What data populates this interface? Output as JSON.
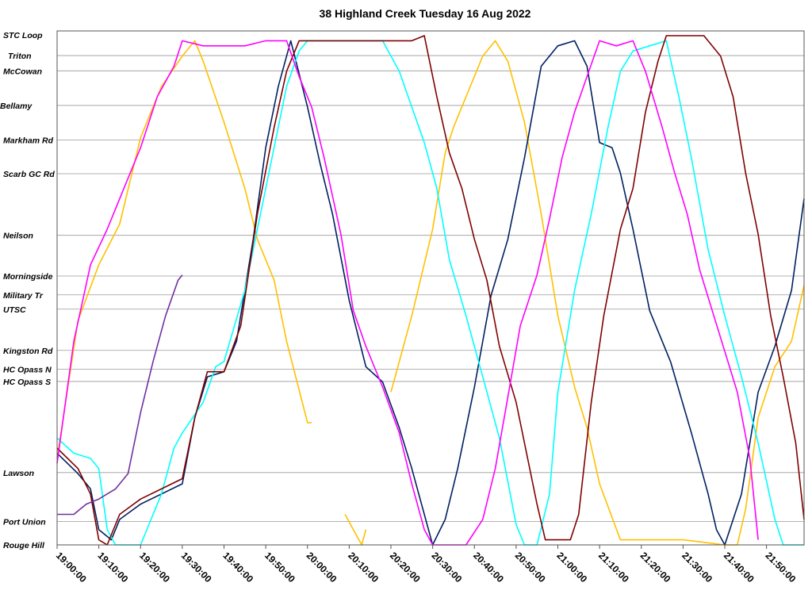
{
  "chart_data": {
    "type": "line",
    "title": "38 Highland Creek Tuesday 16 Aug 2022",
    "xlabel": "",
    "ylabel": "",
    "x_range": [
      "19:00:00",
      "21:59:00"
    ],
    "x_ticks": [
      "19:00:00",
      "19:10:00",
      "19:20:00",
      "19:30:00",
      "19:40:00",
      "19:50:00",
      "20:00:00",
      "20:10:00",
      "20:20:00",
      "20:30:00",
      "20:40:00",
      "20:50:00",
      "21:00:00",
      "21:10:00",
      "21:20:00",
      "21:30:00",
      "21:40:00",
      "21:50:00"
    ],
    "y_axis_note": "stops, listed top (STC Loop) to bottom (Rouge Hill); values are relative position along route",
    "stops": [
      {
        "name": "STC Loop",
        "pos": 100
      },
      {
        "name": "Triton",
        "pos": 96.1
      },
      {
        "name": "McCowan",
        "pos": 93.1
      },
      {
        "name": "Bellamy",
        "pos": 86.3
      },
      {
        "name": "Markham Rd",
        "pos": 79.5
      },
      {
        "name": "Scarb GC Rd",
        "pos": 72.9
      },
      {
        "name": "Neilson",
        "pos": 60.8
      },
      {
        "name": "Morningside",
        "pos": 52.8
      },
      {
        "name": "Military Tr",
        "pos": 49.1
      },
      {
        "name": "UTSC",
        "pos": 46.3
      },
      {
        "name": "Kingston Rd",
        "pos": 38.2
      },
      {
        "name": "HC Opass N",
        "pos": 34.5
      },
      {
        "name": "HC Opass S",
        "pos": 32.1
      },
      {
        "name": "Lawson",
        "pos": 14.2
      },
      {
        "name": "Port Union",
        "pos": 4.6
      },
      {
        "name": "Rouge Hill",
        "pos": 0
      }
    ],
    "grid": true,
    "legend": "none",
    "series": [
      {
        "color": "#FFC000",
        "points": [
          [
            "19:00",
            17
          ],
          [
            "19:05",
            44
          ],
          [
            "19:10",
            55
          ],
          [
            "19:15",
            63
          ],
          [
            "19:20",
            80
          ],
          [
            "19:25",
            90
          ],
          [
            "19:30",
            96
          ],
          [
            "19:33",
            99
          ],
          [
            "19:35",
            95
          ],
          [
            "19:40",
            83
          ],
          [
            "19:45",
            70
          ],
          [
            "19:48",
            60
          ],
          [
            "19:52",
            52
          ],
          [
            "19:55",
            40
          ],
          [
            "20:00",
            24
          ],
          [
            "20:01",
            24
          ]
        ]
      },
      {
        "color": "#FFC000",
        "points": [
          [
            "20:09",
            6
          ],
          [
            "20:11",
            3
          ],
          [
            "20:13",
            0
          ],
          [
            "20:14",
            3
          ]
        ]
      },
      {
        "color": "#FFC000",
        "points": [
          [
            "20:20",
            30
          ],
          [
            "20:25",
            45
          ],
          [
            "20:30",
            62
          ],
          [
            "20:33",
            77
          ],
          [
            "20:35",
            82
          ],
          [
            "20:38",
            88
          ],
          [
            "20:42",
            96
          ],
          [
            "20:45",
            99
          ],
          [
            "20:48",
            95
          ],
          [
            "20:52",
            83
          ],
          [
            "20:56",
            65
          ],
          [
            "21:00",
            45
          ],
          [
            "21:04",
            31
          ],
          [
            "21:07",
            23
          ],
          [
            "21:10",
            12
          ],
          [
            "21:15",
            1
          ],
          [
            "21:30",
            1
          ],
          [
            "21:40",
            0
          ],
          [
            "21:43",
            0
          ],
          [
            "21:45",
            7
          ],
          [
            "21:48",
            25
          ],
          [
            "21:52",
            35
          ],
          [
            "21:56",
            40
          ],
          [
            "21:59",
            51
          ]
        ]
      },
      {
        "color": "#002060",
        "points": [
          [
            "19:00",
            18
          ],
          [
            "19:05",
            14
          ],
          [
            "19:08",
            11
          ],
          [
            "19:10",
            3
          ],
          [
            "19:13",
            1
          ],
          [
            "19:15",
            5
          ],
          [
            "19:20",
            8
          ],
          [
            "19:25",
            10
          ],
          [
            "19:30",
            12
          ],
          [
            "19:33",
            25
          ],
          [
            "19:36",
            33
          ],
          [
            "19:40",
            34
          ],
          [
            "19:43",
            40
          ],
          [
            "19:47",
            60
          ],
          [
            "19:50",
            78
          ],
          [
            "19:53",
            90
          ],
          [
            "19:56",
            99
          ],
          [
            "20:00",
            86
          ],
          [
            "20:03",
            75
          ],
          [
            "20:06",
            65
          ],
          [
            "20:10",
            48
          ],
          [
            "20:14",
            35
          ],
          [
            "20:18",
            32
          ],
          [
            "20:22",
            23
          ],
          [
            "20:25",
            15
          ],
          [
            "20:28",
            6
          ],
          [
            "20:30",
            0
          ],
          [
            "20:33",
            5
          ],
          [
            "20:36",
            15
          ],
          [
            "20:40",
            31
          ],
          [
            "20:44",
            49
          ],
          [
            "20:48",
            60
          ],
          [
            "20:52",
            76
          ],
          [
            "20:56",
            94
          ],
          [
            "21:00",
            98
          ],
          [
            "21:04",
            99
          ],
          [
            "21:07",
            94
          ],
          [
            "21:10",
            79
          ],
          [
            "21:13",
            78
          ],
          [
            "21:15",
            73
          ],
          [
            "21:18",
            62
          ],
          [
            "21:22",
            46
          ],
          [
            "21:27",
            36
          ],
          [
            "21:32",
            22
          ],
          [
            "21:36",
            10
          ],
          [
            "21:38",
            3
          ],
          [
            "21:40",
            0
          ],
          [
            "21:44",
            10
          ],
          [
            "21:48",
            30
          ],
          [
            "21:52",
            39
          ],
          [
            "21:56",
            50
          ],
          [
            "21:59",
            68
          ]
        ]
      },
      {
        "color": "#00FFFF",
        "points": [
          [
            "19:00",
            21
          ],
          [
            "19:04",
            18
          ],
          [
            "19:08",
            17
          ],
          [
            "19:10",
            15
          ],
          [
            "19:12",
            3
          ],
          [
            "19:14",
            0
          ],
          [
            "19:20",
            0
          ],
          [
            "19:25",
            10
          ],
          [
            "19:28",
            19
          ],
          [
            "19:30",
            22
          ],
          [
            "19:35",
            28
          ],
          [
            "19:38",
            35
          ],
          [
            "19:40",
            36
          ],
          [
            "19:45",
            50
          ],
          [
            "19:50",
            70
          ],
          [
            "19:55",
            90
          ],
          [
            "19:58",
            97
          ],
          [
            "20:00",
            99
          ],
          [
            "20:10",
            99
          ],
          [
            "20:15",
            99
          ],
          [
            "20:18",
            99
          ],
          [
            "20:22",
            93
          ],
          [
            "20:25",
            86
          ],
          [
            "20:28",
            79
          ],
          [
            "20:31",
            70
          ],
          [
            "20:34",
            56
          ],
          [
            "20:38",
            45
          ],
          [
            "20:42",
            33
          ],
          [
            "20:46",
            21
          ],
          [
            "20:50",
            4
          ],
          [
            "20:52",
            0
          ],
          [
            "20:55",
            0
          ],
          [
            "20:58",
            10
          ],
          [
            "21:00",
            30
          ],
          [
            "21:04",
            50
          ],
          [
            "21:08",
            65
          ],
          [
            "21:12",
            82
          ],
          [
            "21:15",
            93
          ],
          [
            "21:18",
            97
          ],
          [
            "21:22",
            98
          ],
          [
            "21:26",
            99
          ],
          [
            "21:29",
            88
          ],
          [
            "21:32",
            76
          ],
          [
            "21:36",
            58
          ],
          [
            "21:40",
            45
          ],
          [
            "21:44",
            33
          ],
          [
            "21:48",
            20
          ],
          [
            "21:52",
            5
          ],
          [
            "21:54",
            0
          ],
          [
            "21:59",
            0
          ]
        ]
      },
      {
        "color": "#7F0000",
        "points": [
          [
            "19:00",
            19
          ],
          [
            "19:05",
            15
          ],
          [
            "19:08",
            10
          ],
          [
            "19:10",
            1
          ],
          [
            "19:12",
            0
          ],
          [
            "19:15",
            6
          ],
          [
            "19:20",
            9
          ],
          [
            "19:25",
            11
          ],
          [
            "19:30",
            13
          ],
          [
            "19:33",
            25
          ],
          [
            "19:36",
            34
          ],
          [
            "19:40",
            34
          ],
          [
            "19:44",
            43
          ],
          [
            "19:48",
            65
          ],
          [
            "19:52",
            82
          ],
          [
            "19:55",
            93
          ],
          [
            "19:58",
            99
          ],
          [
            "20:00",
            99
          ],
          [
            "20:05",
            99
          ],
          [
            "20:10",
            99
          ],
          [
            "20:15",
            99
          ],
          [
            "20:20",
            99
          ],
          [
            "20:25",
            99
          ],
          [
            "20:28",
            100
          ],
          [
            "20:31",
            88
          ],
          [
            "20:34",
            77
          ],
          [
            "20:37",
            70
          ],
          [
            "20:40",
            60
          ],
          [
            "20:43",
            52
          ],
          [
            "20:46",
            39
          ],
          [
            "20:50",
            28
          ],
          [
            "20:55",
            8
          ],
          [
            "20:57",
            1
          ],
          [
            "21:00",
            1
          ],
          [
            "21:03",
            1
          ],
          [
            "21:05",
            6
          ],
          [
            "21:08",
            28
          ],
          [
            "21:11",
            45
          ],
          [
            "21:15",
            62
          ],
          [
            "21:18",
            70
          ],
          [
            "21:21",
            85
          ],
          [
            "21:24",
            95
          ],
          [
            "21:26",
            100
          ],
          [
            "21:30",
            100
          ],
          [
            "21:35",
            100
          ],
          [
            "21:39",
            96
          ],
          [
            "21:42",
            88
          ],
          [
            "21:45",
            73
          ],
          [
            "21:48",
            61
          ],
          [
            "21:51",
            45
          ],
          [
            "21:54",
            33
          ],
          [
            "21:57",
            20
          ],
          [
            "21:59",
            5
          ]
        ]
      },
      {
        "color": "#FF00FF",
        "points": [
          [
            "19:00",
            16
          ],
          [
            "19:04",
            40
          ],
          [
            "19:08",
            55
          ],
          [
            "19:12",
            62
          ],
          [
            "19:16",
            70
          ],
          [
            "19:20",
            78
          ],
          [
            "19:24",
            88
          ],
          [
            "19:28",
            94
          ],
          [
            "19:30",
            99
          ],
          [
            "19:35",
            98
          ],
          [
            "19:40",
            98
          ],
          [
            "19:45",
            98
          ],
          [
            "19:50",
            99
          ],
          [
            "19:55",
            99
          ],
          [
            "19:58",
            92
          ],
          [
            "20:01",
            86
          ],
          [
            "20:04",
            76
          ],
          [
            "20:08",
            61
          ],
          [
            "20:11",
            46
          ],
          [
            "20:14",
            39
          ],
          [
            "20:18",
            31
          ],
          [
            "20:22",
            22
          ],
          [
            "20:25",
            12
          ],
          [
            "20:28",
            3
          ],
          [
            "20:30",
            0
          ],
          [
            "20:35",
            0
          ],
          [
            "20:38",
            0
          ],
          [
            "20:42",
            5
          ],
          [
            "20:45",
            15
          ],
          [
            "20:48",
            29
          ],
          [
            "20:51",
            43
          ],
          [
            "20:55",
            53
          ],
          [
            "20:58",
            64
          ],
          [
            "21:01",
            76
          ],
          [
            "21:04",
            85
          ],
          [
            "21:07",
            92
          ],
          [
            "21:10",
            99
          ],
          [
            "21:14",
            98
          ],
          [
            "21:18",
            99
          ],
          [
            "21:21",
            93
          ],
          [
            "21:25",
            82
          ],
          [
            "21:28",
            73
          ],
          [
            "21:31",
            65
          ],
          [
            "21:34",
            54
          ],
          [
            "21:37",
            46
          ],
          [
            "21:40",
            38
          ],
          [
            "21:43",
            30
          ],
          [
            "21:46",
            17
          ],
          [
            "21:48",
            1
          ]
        ]
      },
      {
        "color": "#7030A0",
        "points": [
          [
            "19:00",
            6
          ],
          [
            "19:04",
            6
          ],
          [
            "19:07",
            8
          ],
          [
            "19:10",
            9
          ],
          [
            "19:14",
            11
          ],
          [
            "19:17",
            14
          ],
          [
            "19:20",
            26
          ],
          [
            "19:23",
            36
          ],
          [
            "19:26",
            45
          ],
          [
            "19:29",
            52
          ],
          [
            "19:30",
            53
          ]
        ]
      }
    ]
  }
}
